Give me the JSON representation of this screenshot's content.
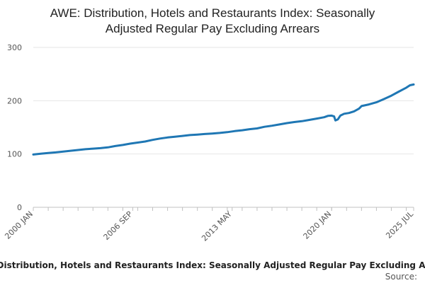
{
  "chart_data": {
    "type": "line",
    "title": "AWE: Distribution, Hotels and Restaurants Index: Seasonally Adjusted Regular Pay Excluding Arrears",
    "title_lines": [
      "AWE: Distribution, Hotels and Restaurants Index: Seasonally",
      "Adjusted Regular Pay Excluding Arrears"
    ],
    "xlabel": "",
    "ylabel": "",
    "ylim": [
      0,
      300
    ],
    "yticks": [
      0,
      100,
      200,
      300
    ],
    "x_tick_labels": [
      "2000 JAN",
      "2006 SEP",
      "2013 MAY",
      "2020 JAN",
      "2025 JUL"
    ],
    "grid": true,
    "legend_position": "bottom",
    "series": [
      {
        "name": "AWE: Distribution, Hotels and Restaurants Index: Seasonally Adjusted Regular Pay Excluding Arrears",
        "color": "#1f77b4",
        "points": [
          [
            "2000-01",
            99.0
          ],
          [
            "2000-07",
            100.5
          ],
          [
            "2001-01",
            102.0
          ],
          [
            "2001-07",
            103.0
          ],
          [
            "2002-01",
            104.5
          ],
          [
            "2002-07",
            106.0
          ],
          [
            "2003-01",
            107.5
          ],
          [
            "2003-07",
            109.0
          ],
          [
            "2004-01",
            110.0
          ],
          [
            "2004-07",
            111.0
          ],
          [
            "2005-01",
            112.5
          ],
          [
            "2005-07",
            115.0
          ],
          [
            "2006-01",
            117.0
          ],
          [
            "2006-07",
            119.5
          ],
          [
            "2007-01",
            121.5
          ],
          [
            "2007-07",
            123.5
          ],
          [
            "2008-01",
            126.5
          ],
          [
            "2008-07",
            129.0
          ],
          [
            "2009-01",
            131.0
          ],
          [
            "2009-07",
            132.5
          ],
          [
            "2010-01",
            134.0
          ],
          [
            "2010-07",
            135.5
          ],
          [
            "2011-01",
            136.5
          ],
          [
            "2011-07",
            137.5
          ],
          [
            "2012-01",
            138.5
          ],
          [
            "2012-07",
            139.5
          ],
          [
            "2013-01",
            141.0
          ],
          [
            "2013-07",
            143.0
          ],
          [
            "2014-01",
            144.5
          ],
          [
            "2014-07",
            146.5
          ],
          [
            "2015-01",
            148.0
          ],
          [
            "2015-07",
            151.0
          ],
          [
            "2016-01",
            153.0
          ],
          [
            "2016-07",
            155.5
          ],
          [
            "2017-01",
            158.0
          ],
          [
            "2017-07",
            160.0
          ],
          [
            "2018-01",
            161.5
          ],
          [
            "2018-07",
            164.0
          ],
          [
            "2019-01",
            166.5
          ],
          [
            "2019-07",
            169.0
          ],
          [
            "2019-10",
            171.5
          ],
          [
            "2020-01",
            172.0
          ],
          [
            "2020-03",
            170.5
          ],
          [
            "2020-04",
            163.0
          ],
          [
            "2020-06",
            165.0
          ],
          [
            "2020-08",
            172.0
          ],
          [
            "2020-11",
            175.5
          ],
          [
            "2021-03",
            177.0
          ],
          [
            "2021-07",
            180.0
          ],
          [
            "2021-11",
            185.0
          ],
          [
            "2022-01",
            190.0
          ],
          [
            "2022-07",
            193.0
          ],
          [
            "2023-01",
            197.0
          ],
          [
            "2023-07",
            203.0
          ],
          [
            "2024-01",
            209.5
          ],
          [
            "2024-07",
            217.0
          ],
          [
            "2025-01",
            224.5
          ],
          [
            "2025-04",
            229.0
          ],
          [
            "2025-07",
            230.5
          ]
        ]
      }
    ],
    "source_label": "Source:"
  }
}
